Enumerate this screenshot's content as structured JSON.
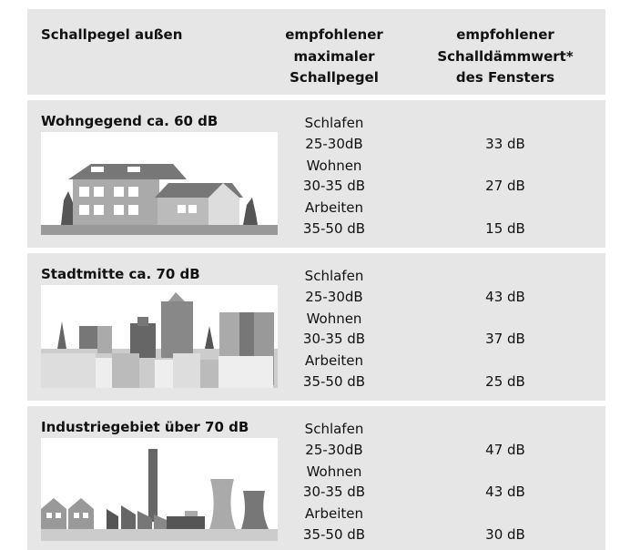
{
  "header": {
    "location": "Schallpegel außen",
    "max_level": [
      "empfohlener",
      "maximaler",
      "Schallpegel"
    ],
    "insulation": [
      "empfohlener",
      "Schalldämmwert*",
      "des Fensters"
    ]
  },
  "rows": [
    {
      "title": "Wohngegend ca. 60 dB",
      "items": [
        {
          "activity": "Schlafen",
          "level": "25-30dB",
          "value": "33 dB"
        },
        {
          "activity": "Wohnen",
          "level": "30-35 dB",
          "value": "27 dB"
        },
        {
          "activity": "Arbeiten",
          "level": "35-50 dB",
          "value": "15 dB"
        }
      ]
    },
    {
      "title": "Stadtmitte ca. 70 dB",
      "items": [
        {
          "activity": "Schlafen",
          "level": "25-30dB",
          "value": "43 dB"
        },
        {
          "activity": "Wohnen",
          "level": "30-35 dB",
          "value": "37 dB"
        },
        {
          "activity": "Arbeiten",
          "level": "35-50 dB",
          "value": "25 dB"
        }
      ]
    },
    {
      "title": "Industriegebiet über 70 dB",
      "items": [
        {
          "activity": "Schlafen",
          "level": "25-30dB",
          "value": "47 dB"
        },
        {
          "activity": "Wohnen",
          "level": "30-35 dB",
          "value": "43 dB"
        },
        {
          "activity": "Arbeiten",
          "level": "35-50 dB",
          "value": "30 dB"
        }
      ]
    }
  ]
}
